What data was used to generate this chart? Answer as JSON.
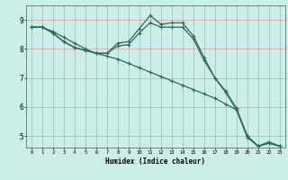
{
  "xlabel": "Humidex (Indice chaleur)",
  "bg_color": "#cceee8",
  "grid_color": "#ee9999",
  "line_color": "#2a6b60",
  "xlim": [
    -0.5,
    23.5
  ],
  "ylim": [
    4.6,
    9.5
  ],
  "xticks": [
    0,
    1,
    2,
    3,
    4,
    5,
    6,
    7,
    8,
    9,
    10,
    11,
    12,
    13,
    14,
    15,
    16,
    17,
    18,
    19,
    20,
    21,
    22,
    23
  ],
  "yticks": [
    5,
    6,
    7,
    8,
    9
  ],
  "line1_x": [
    0,
    1,
    2,
    3,
    4,
    5,
    6,
    7,
    8,
    9,
    10,
    11,
    12,
    13,
    14,
    15,
    16,
    17,
    18,
    19,
    20,
    21,
    22,
    23
  ],
  "line1_y": [
    8.75,
    8.75,
    8.55,
    8.25,
    8.05,
    7.95,
    7.85,
    7.85,
    8.2,
    8.25,
    8.7,
    9.15,
    8.85,
    8.9,
    8.9,
    8.45,
    7.7,
    7.0,
    6.55,
    5.95,
    5.0,
    4.65,
    4.8,
    4.65
  ],
  "line2_x": [
    0,
    1,
    2,
    3,
    4,
    5,
    6,
    7,
    8,
    9,
    10,
    11,
    12,
    13,
    14,
    15,
    16,
    17,
    18,
    19,
    20,
    21,
    22,
    23
  ],
  "line2_y": [
    8.75,
    8.75,
    8.55,
    8.25,
    8.05,
    7.95,
    7.85,
    7.85,
    8.1,
    8.15,
    8.55,
    8.9,
    8.75,
    8.75,
    8.75,
    8.35,
    7.6,
    7.0,
    6.5,
    5.9,
    4.95,
    4.65,
    4.75,
    4.65
  ],
  "line3_x": [
    0,
    1,
    2,
    3,
    4,
    5,
    6,
    7,
    8,
    9,
    10,
    11,
    12,
    13,
    14,
    15,
    16,
    17,
    18,
    19,
    20,
    21,
    22,
    23
  ],
  "line3_y": [
    8.75,
    8.75,
    8.6,
    8.4,
    8.2,
    8.0,
    7.85,
    7.75,
    7.65,
    7.5,
    7.35,
    7.2,
    7.05,
    6.9,
    6.75,
    6.6,
    6.45,
    6.3,
    6.1,
    5.9,
    5.0,
    4.65,
    4.75,
    4.65
  ]
}
